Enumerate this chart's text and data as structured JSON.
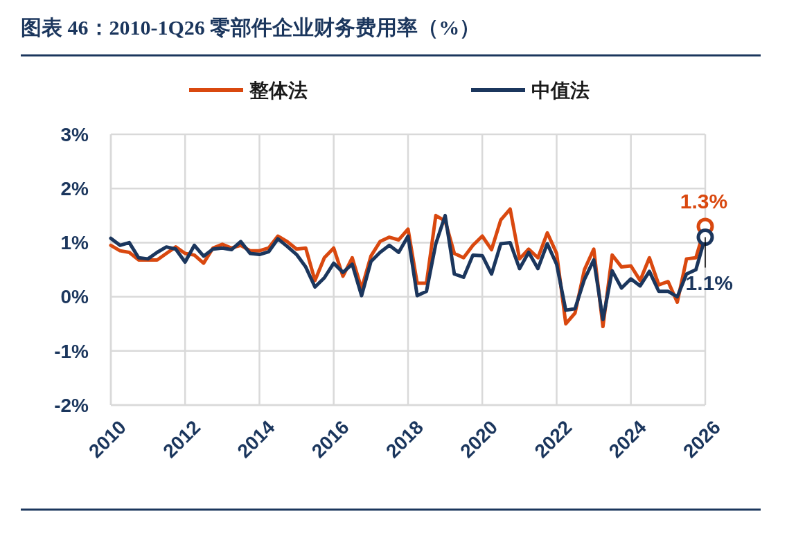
{
  "chart_data": {
    "type": "line",
    "title": "图表 46：2010-1Q26 零部件企业财务费用率（%）",
    "x": [
      "2010-01",
      "2010-04",
      "2010-07",
      "2010-10",
      "2011-01",
      "2011-04",
      "2011-07",
      "2011-10",
      "2012-01",
      "2012-04",
      "2012-07",
      "2012-10",
      "2013-01",
      "2013-04",
      "2013-07",
      "2013-10",
      "2014-01",
      "2014-04",
      "2014-07",
      "2014-10",
      "2015-01",
      "2015-04",
      "2015-07",
      "2015-10",
      "2016-01",
      "2016-04",
      "2016-07",
      "2016-10",
      "2017-01",
      "2017-04",
      "2017-07",
      "2017-10",
      "2018-01",
      "2018-04",
      "2018-07",
      "2018-10",
      "2019-01",
      "2019-04",
      "2019-07",
      "2019-10",
      "2020-01",
      "2020-04",
      "2020-07",
      "2020-10",
      "2021-01",
      "2021-04",
      "2021-07",
      "2021-10",
      "2022-01",
      "2022-04",
      "2022-07",
      "2022-10",
      "2023-01",
      "2023-04",
      "2023-07",
      "2023-10",
      "2024-01",
      "2024-04",
      "2024-07",
      "2024-10",
      "2025-01",
      "2025-04",
      "2025-07",
      "2025-10",
      "2026-01"
    ],
    "series": [
      {
        "name": "整体法",
        "color": "#d9480f",
        "values": [
          0.95,
          0.85,
          0.82,
          0.68,
          0.68,
          0.68,
          0.8,
          0.92,
          0.8,
          0.77,
          0.62,
          0.9,
          0.97,
          0.9,
          0.95,
          0.85,
          0.85,
          0.9,
          1.12,
          1.02,
          0.88,
          0.9,
          0.3,
          0.72,
          0.9,
          0.38,
          0.72,
          0.15,
          0.75,
          1.02,
          1.1,
          1.05,
          1.25,
          0.25,
          0.25,
          1.5,
          1.4,
          0.8,
          0.72,
          0.95,
          1.12,
          0.87,
          1.42,
          1.62,
          0.7,
          0.88,
          0.72,
          1.18,
          0.8,
          -0.5,
          -0.3,
          0.5,
          0.88,
          -0.55,
          0.77,
          0.55,
          0.57,
          0.3,
          0.72,
          0.22,
          0.28,
          -0.1,
          0.7,
          0.72,
          1.3
        ]
      },
      {
        "name": "中值法",
        "color": "#1b365d",
        "values": [
          1.08,
          0.95,
          1.0,
          0.72,
          0.7,
          0.82,
          0.92,
          0.88,
          0.64,
          0.95,
          0.75,
          0.88,
          0.9,
          0.87,
          1.02,
          0.8,
          0.78,
          0.83,
          1.07,
          0.93,
          0.78,
          0.55,
          0.18,
          0.35,
          0.62,
          0.45,
          0.6,
          0.02,
          0.65,
          0.82,
          0.95,
          0.82,
          1.12,
          0.02,
          0.1,
          0.98,
          1.5,
          0.42,
          0.36,
          0.77,
          0.76,
          0.42,
          0.98,
          1.0,
          0.52,
          0.82,
          0.52,
          0.98,
          0.6,
          -0.25,
          -0.22,
          0.32,
          0.68,
          -0.42,
          0.48,
          0.16,
          0.33,
          0.2,
          0.47,
          0.1,
          0.1,
          0.0,
          0.42,
          0.5,
          1.1
        ]
      }
    ],
    "xlim": [
      "2010-01",
      "2026-01"
    ],
    "xticks": [
      {
        "value": "2010",
        "label": "2010"
      },
      {
        "value": "2012",
        "label": "2012"
      },
      {
        "value": "2014",
        "label": "2014"
      },
      {
        "value": "2016",
        "label": "2016"
      },
      {
        "value": "2018",
        "label": "2018"
      },
      {
        "value": "2020",
        "label": "2020"
      },
      {
        "value": "2022",
        "label": "2022"
      },
      {
        "value": "2024",
        "label": "2024"
      },
      {
        "value": "2026",
        "label": "2026"
      }
    ],
    "ylim": [
      -2,
      3
    ],
    "yticks": [
      {
        "value": -2,
        "label": "-2%"
      },
      {
        "value": -1,
        "label": "-1%"
      },
      {
        "value": 0,
        "label": "0%"
      },
      {
        "value": 1,
        "label": "1%"
      },
      {
        "value": 2,
        "label": "2%"
      },
      {
        "value": 3,
        "label": "3%"
      }
    ],
    "grid": true,
    "legend": "top",
    "line_style": "solid",
    "annotations": [
      {
        "text": "1.3%",
        "x": "2026-01",
        "y": 1.3
      },
      {
        "text": "1.1%",
        "x": "2026-01",
        "y": 1.1
      }
    ]
  }
}
